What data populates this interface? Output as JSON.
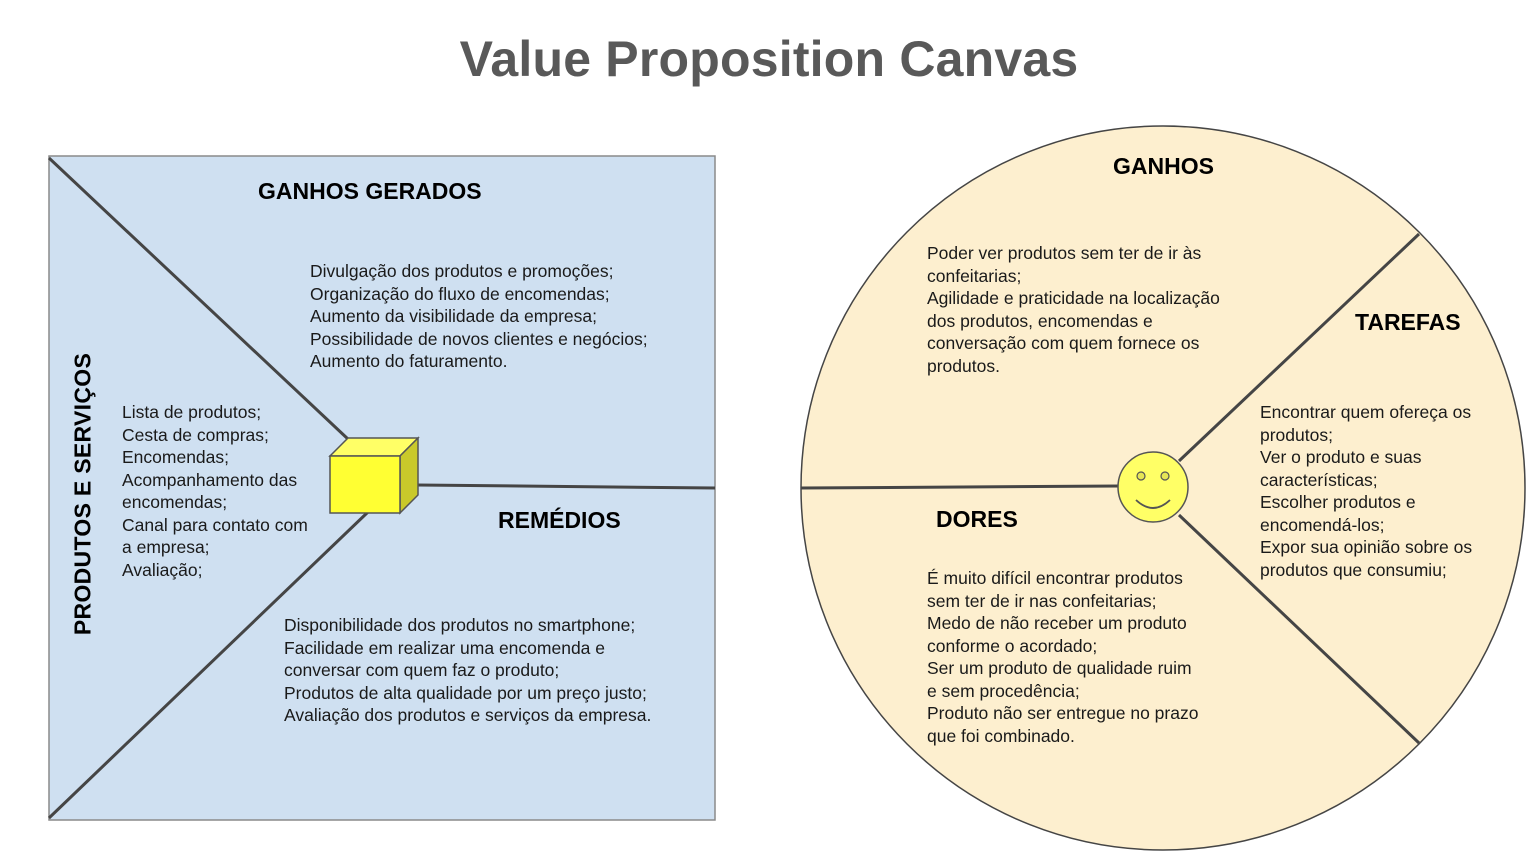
{
  "title": "Value Proposition Canvas",
  "colors": {
    "square_fill": "#cfe0f1",
    "circle_fill": "#fdefcf",
    "cube_fill": "#ffff33",
    "smiley_fill": "#ffff66",
    "line": "#454545",
    "title": "#595959"
  },
  "value_map": {
    "gains_creators": {
      "heading": "GANHOS GERADOS",
      "items": [
        "Divulgação dos produtos e promoções;",
        "Organização do fluxo de encomendas;",
        "Aumento da visibilidade da empresa;",
        "Possibilidade de novos clientes e negócios;",
        "Aumento do faturamento."
      ]
    },
    "products_services": {
      "heading": "PRODUTOS E SERVIÇOS",
      "items": [
        "Lista de produtos;",
        "Cesta de compras;",
        "Encomendas;",
        "Acompanhamento das",
        "encomendas;",
        "Canal para contato com",
        "a empresa;",
        "Avaliação;"
      ]
    },
    "pain_relievers": {
      "heading": "REMÉDIOS",
      "items": [
        "Disponibilidade dos produtos no smartphone;",
        "Facilidade em realizar uma encomenda e",
        "conversar com quem faz o produto;",
        "Produtos de alta qualidade por um preço justo;",
        "Avaliação dos produtos e serviços da empresa."
      ]
    },
    "product_icon": "cube-icon"
  },
  "customer_profile": {
    "gains": {
      "heading": "GANHOS",
      "items": [
        "Poder ver produtos sem ter de ir às",
        "confeitarias;",
        "Agilidade e praticidade na localização",
        "dos produtos, encomendas e",
        "conversação com quem fornece os",
        "produtos."
      ]
    },
    "jobs": {
      "heading": "TAREFAS",
      "items": [
        "Encontrar quem ofereça os",
        "produtos;",
        "Ver o produto e suas",
        "características;",
        "Escolher produtos e",
        "encomendá-los;",
        "Expor sua opinião sobre os",
        "produtos que consumiu;"
      ]
    },
    "pains": {
      "heading": "DORES",
      "items": [
        "É muito difícil encontrar produtos",
        "sem ter de ir nas confeitarias;",
        "Medo de não receber um produto",
        "conforme o acordado;",
        "Ser um produto de qualidade ruim",
        "e sem procedência;",
        "Produto não ser entregue no prazo",
        "que foi combinado."
      ]
    },
    "customer_icon": "smiley-face-icon"
  }
}
